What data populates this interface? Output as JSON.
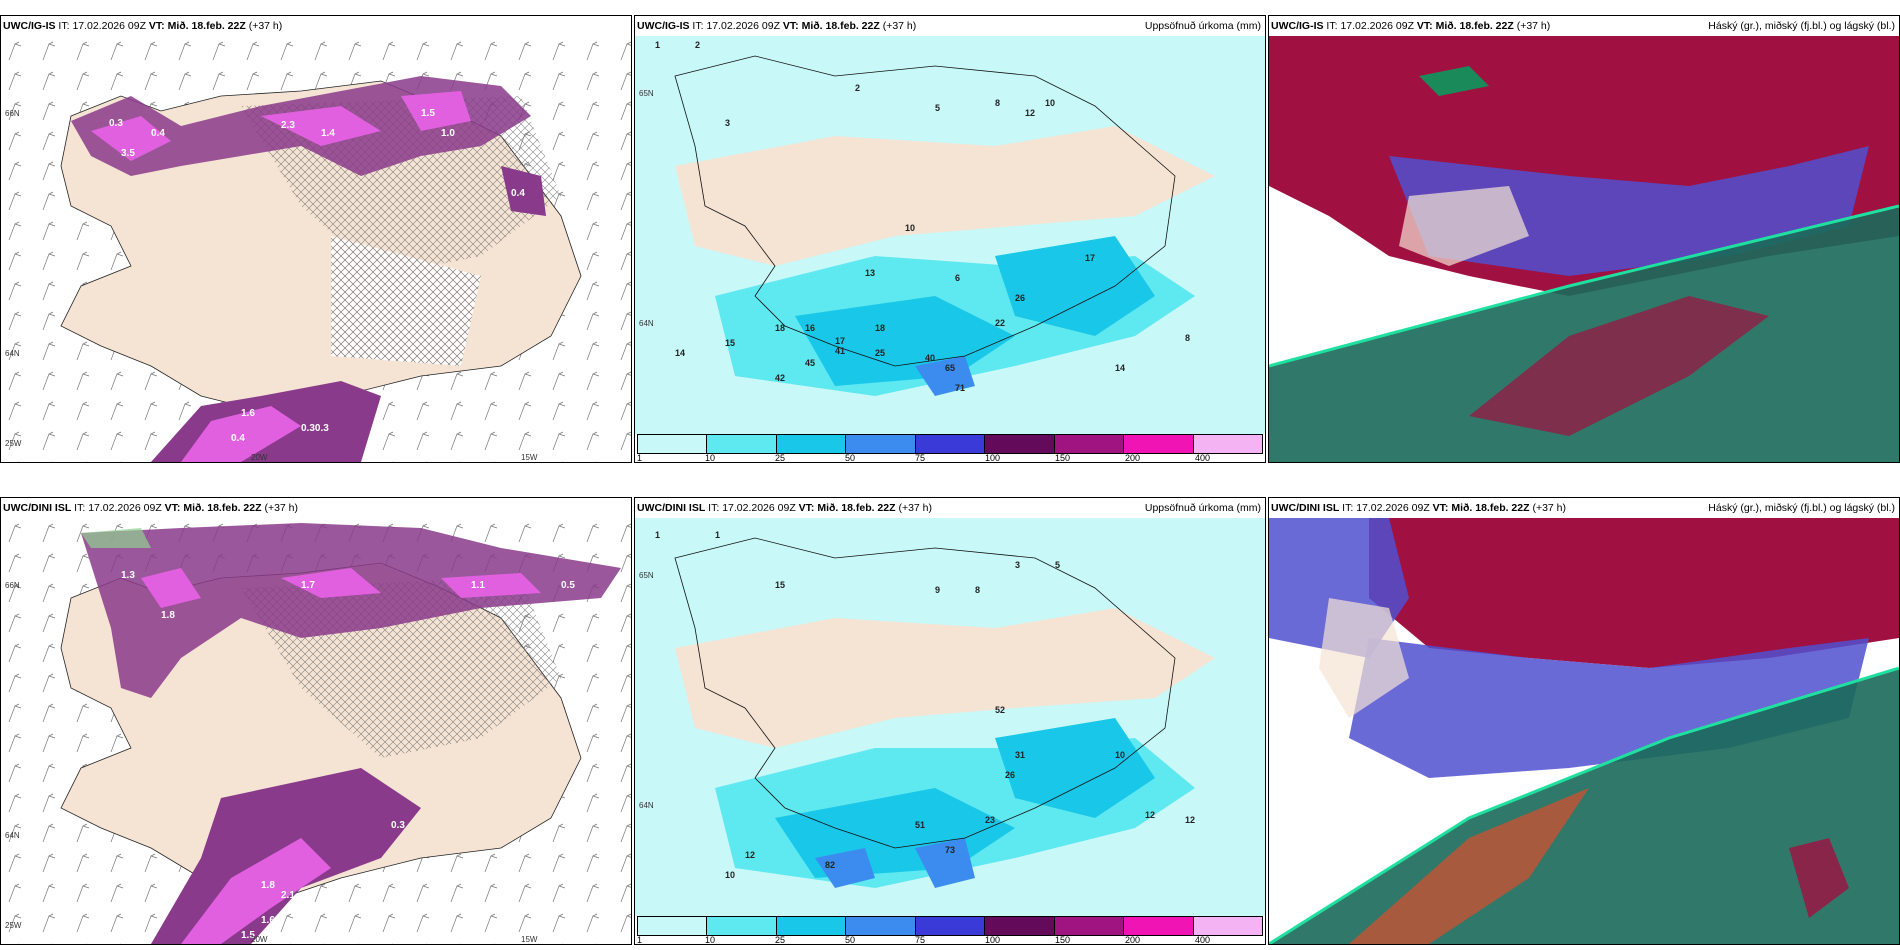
{
  "panels": [
    {
      "id": "p1",
      "model": "UWC/IG-IS",
      "it_label": "IT:",
      "it": "17.02.2026 09Z",
      "vt_label": "VT:",
      "vt": "Mið. 18.feb. 22Z",
      "lead": "(+37 h)",
      "right": "",
      "labels": [
        "0.3",
        "0.4",
        "0.6",
        "0.9",
        "1.4",
        "3.5",
        "2.3",
        "1.8",
        "1.5",
        "0.5",
        "0.8",
        "1.0",
        "0.3",
        "0.5",
        "0.4",
        "1.4",
        "0.6",
        "0.30.3",
        "1.6",
        "0.4"
      ],
      "axis": [
        "66N",
        "64N",
        "25W",
        "20W",
        "15W"
      ]
    },
    {
      "id": "p2",
      "model": "UWC/IG-IS",
      "it_label": "IT:",
      "it": "17.02.2026 09Z",
      "vt_label": "VT:",
      "vt": "Mið. 18.feb. 22Z",
      "lead": "(+37 h)",
      "right": "Uppsöfnuð úrkoma (mm)",
      "labels": [
        "1",
        "2",
        "3",
        "2",
        "4",
        "5",
        "7",
        "6",
        "8",
        "10",
        "12",
        "9",
        "2",
        "1",
        "10",
        "13",
        "7",
        "24",
        "17",
        "26",
        "18",
        "16",
        "15",
        "17",
        "18",
        "25",
        "45",
        "41",
        "14",
        "15",
        "42",
        "22",
        "40",
        "65",
        "71",
        "8",
        "14",
        "2",
        "4",
        "3"
      ],
      "axis": [
        "65N",
        "64N"
      ],
      "legend": [
        "1",
        "10",
        "25",
        "50",
        "75",
        "100",
        "150",
        "200",
        "400"
      ]
    },
    {
      "id": "p3",
      "model": "UWC/IG-IS",
      "it_label": "IT:",
      "it": "17.02.2026 09Z",
      "vt_label": "VT:",
      "vt": "Mið. 18.feb. 22Z",
      "lead": "(+37 h)",
      "right": "Háský (gr.), miðský (fj.bl.) og lágský (bl.)",
      "labels": [],
      "axis": []
    },
    {
      "id": "p4",
      "model": "UWC/DINI ISL",
      "it_label": "IT:",
      "it": "17.02.2026 09Z",
      "vt_label": "VT:",
      "vt": "Mið. 18.feb. 22Z",
      "lead": "(+37 h)",
      "right": "",
      "labels": [
        "0.3",
        "0.4",
        "1.3",
        "1.8",
        "2.1",
        "1.7",
        "0.5",
        "0.8",
        "1.1",
        "0.5",
        "0.6",
        "0.3",
        "0.4",
        "0.6",
        "1.8",
        "2.1",
        "1.6",
        "1.5",
        "0.8",
        "0.5"
      ],
      "axis": [
        "66N",
        "64N",
        "25W",
        "20W",
        "15W"
      ]
    },
    {
      "id": "p5",
      "model": "UWC/DINI ISL",
      "it_label": "IT:",
      "it": "17.02.2026 09Z",
      "vt_label": "VT:",
      "vt": "Mið. 18.feb. 22Z",
      "lead": "(+37 h)",
      "right": "Uppsöfnuð úrkoma (mm)",
      "labels": [
        "1",
        "1",
        "3",
        "5",
        "9",
        "8",
        "4",
        "6",
        "2",
        "3",
        "7",
        "15",
        "1",
        "2",
        "8",
        "9",
        "31",
        "26",
        "23",
        "10",
        "12",
        "12",
        "52",
        "73",
        "82",
        "12",
        "10",
        "23",
        "51",
        "4"
      ],
      "axis": [
        "65N",
        "64N"
      ],
      "legend": [
        "1",
        "10",
        "25",
        "50",
        "75",
        "100",
        "150",
        "200",
        "400"
      ]
    },
    {
      "id": "p6",
      "model": "UWC/DINI ISL",
      "it_label": "IT:",
      "it": "17.02.2026 09Z",
      "vt_label": "VT:",
      "vt": "Mið. 18.feb. 22Z",
      "lead": "(+37 h)",
      "right": "Háský (gr.), miðský (fj.bl.) og lágský (bl.)",
      "labels": [],
      "axis": []
    }
  ],
  "legend_colors": [
    "#c8f8f8",
    "#5ee8f0",
    "#19c8e8",
    "#3c8cf0",
    "#3a3ad8",
    "#640a5a",
    "#a01482",
    "#f014b4",
    "#f4b4f4"
  ],
  "colors": {
    "land": "#f5e4d4",
    "sea": "#ffffff",
    "precip_light": "#8a3a8a",
    "precip_heavy": "#e060e0",
    "cloud_high": "#1a6a5a",
    "cloud_mid": "#a01040",
    "cloud_low": "#5050d0"
  }
}
